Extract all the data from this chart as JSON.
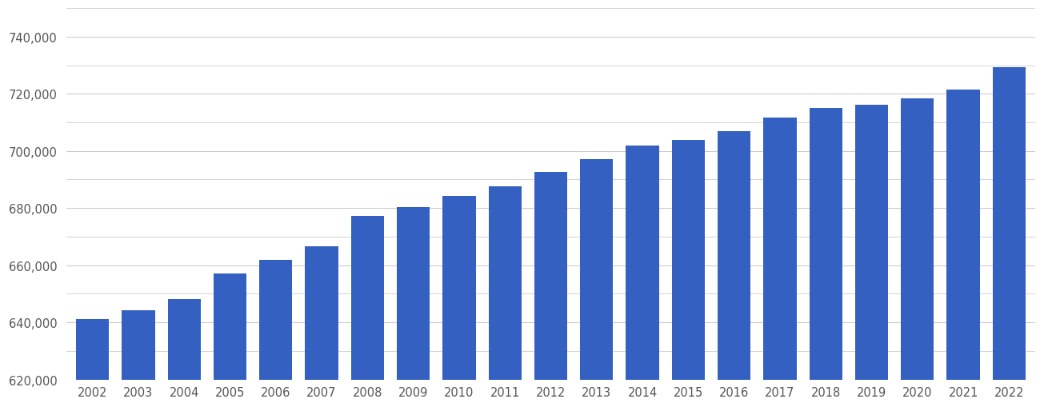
{
  "years": [
    2002,
    2003,
    2004,
    2005,
    2006,
    2007,
    2008,
    2009,
    2010,
    2011,
    2012,
    2013,
    2014,
    2015,
    2016,
    2017,
    2018,
    2019,
    2020,
    2021,
    2022
  ],
  "values": [
    641200,
    644100,
    648200,
    657200,
    661900,
    666500,
    677200,
    680300,
    684200,
    687700,
    692700,
    697100,
    701800,
    703800,
    707000,
    711800,
    715100,
    716100,
    718400,
    721400,
    729200
  ],
  "bar_color": "#3461c1",
  "background_color": "#ffffff",
  "grid_color": "#cccccc",
  "ylim": [
    620000,
    750000
  ],
  "yticks": [
    620000,
    640000,
    660000,
    680000,
    700000,
    720000,
    740000
  ],
  "minor_ytick_step": 10000,
  "tick_color": "#555555",
  "bar_width": 0.72,
  "figsize": [
    13.05,
    5.1
  ],
  "dpi": 100
}
